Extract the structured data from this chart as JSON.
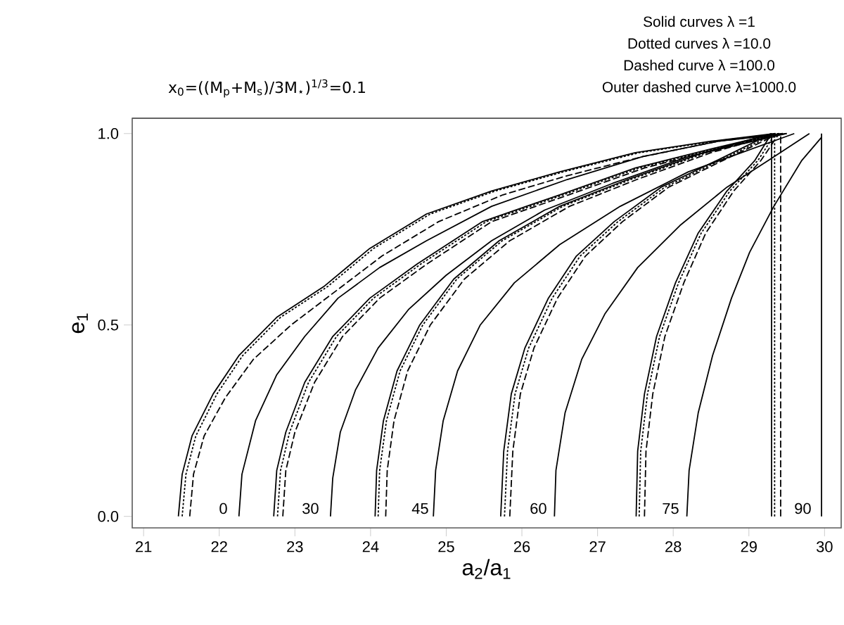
{
  "chart_data": {
    "type": "line",
    "xlabel": "a$_{2}$/a$_{1}$",
    "ylabel": "e$_{1}$",
    "xlim": [
      20.85,
      30.22
    ],
    "ylim": [
      -0.03,
      1.04
    ],
    "xticks": [
      21,
      22,
      23,
      24,
      25,
      26,
      27,
      28,
      29,
      30
    ],
    "yticks": [
      {
        "value": 0,
        "label": "0.0"
      },
      {
        "value": 0.5,
        "label": "0.5"
      },
      {
        "value": 1,
        "label": "1.0"
      }
    ],
    "annotations": [
      "x$_{0}$=((M$_{p}$+M$_{s}$)/3M$_{⋆}$)$^{1/3}$=0.1",
      "Solid curves λ =1",
      "Dotted curves λ =10.0",
      "Dashed curve λ =100.0",
      "Outer dashed curve λ=1000.0",
      "0",
      "30",
      "45",
      "60",
      "75",
      "90"
    ],
    "series": [
      {
        "color": "#000000",
        "line_style": "solid",
        "x": [
          21.46,
          21.51,
          21.64,
          21.92,
          22.26,
          22.76,
          23.38,
          23.99,
          24.74,
          25.6,
          26.5,
          27.5,
          28.5,
          29.35
        ],
        "values": [
          0,
          0.11,
          0.21,
          0.32,
          0.42,
          0.52,
          0.6,
          0.7,
          0.79,
          0.85,
          0.9,
          0.95,
          0.98,
          1.0
        ]
      },
      {
        "color": "#000000",
        "line_style": "dotted",
        "x": [
          21.51,
          21.56,
          21.69,
          21.97,
          22.31,
          22.81,
          23.43,
          24.04,
          24.79,
          25.65,
          26.55,
          27.55,
          28.55,
          29.4
        ],
        "values": [
          0,
          0.11,
          0.21,
          0.32,
          0.42,
          0.52,
          0.6,
          0.7,
          0.79,
          0.85,
          0.9,
          0.95,
          0.98,
          1.0
        ]
      },
      {
        "color": "#000000",
        "line_style": "dashed",
        "x": [
          21.61,
          21.66,
          21.8,
          22.08,
          22.45,
          22.95,
          23.55,
          24.15,
          24.9,
          25.75,
          26.6,
          27.6,
          28.6,
          29.45
        ],
        "values": [
          0,
          0.11,
          0.21,
          0.31,
          0.41,
          0.5,
          0.59,
          0.68,
          0.77,
          0.84,
          0.89,
          0.94,
          0.98,
          1.0
        ]
      },
      {
        "color": "#000000",
        "line_style": "solid",
        "x": [
          22.26,
          22.3,
          22.48,
          22.76,
          23.13,
          23.57,
          24.12,
          24.74,
          25.6,
          26.6,
          27.6,
          28.6,
          29.5
        ],
        "values": [
          0,
          0.11,
          0.25,
          0.37,
          0.47,
          0.57,
          0.65,
          0.72,
          0.81,
          0.88,
          0.94,
          0.98,
          1.0
        ]
      },
      {
        "color": "#000000",
        "line_style": "solid",
        "x": [
          22.72,
          22.76,
          22.88,
          23.13,
          23.5,
          23.99,
          24.62,
          25.48,
          26.5,
          27.5,
          28.5,
          29.35
        ],
        "values": [
          0,
          0.12,
          0.22,
          0.35,
          0.47,
          0.57,
          0.66,
          0.77,
          0.84,
          0.91,
          0.96,
          1.0
        ]
      },
      {
        "color": "#000000",
        "line_style": "dotted",
        "x": [
          22.77,
          22.81,
          22.93,
          23.18,
          23.55,
          24.04,
          24.67,
          25.53,
          26.55,
          27.55,
          28.55,
          29.4
        ],
        "values": [
          0,
          0.12,
          0.22,
          0.35,
          0.47,
          0.57,
          0.66,
          0.77,
          0.84,
          0.91,
          0.96,
          1.0
        ]
      },
      {
        "color": "#000000",
        "line_style": "dashed",
        "x": [
          22.84,
          22.88,
          23.0,
          23.26,
          23.63,
          24.12,
          24.75,
          25.6,
          26.62,
          27.62,
          28.6,
          29.45
        ],
        "values": [
          0,
          0.12,
          0.22,
          0.35,
          0.47,
          0.57,
          0.66,
          0.77,
          0.84,
          0.91,
          0.96,
          1.0
        ]
      },
      {
        "color": "#000000",
        "line_style": "solid",
        "x": [
          23.47,
          23.5,
          23.6,
          23.8,
          24.1,
          24.5,
          25.0,
          25.6,
          26.3,
          27.2,
          28.2,
          29.5
        ],
        "values": [
          0,
          0.1,
          0.22,
          0.33,
          0.44,
          0.54,
          0.63,
          0.72,
          0.8,
          0.87,
          0.94,
          1.0
        ]
      },
      {
        "color": "#000000",
        "line_style": "solid",
        "x": [
          24.06,
          24.08,
          24.17,
          24.35,
          24.65,
          25.1,
          25.7,
          26.5,
          27.4,
          28.4,
          29.3
        ],
        "values": [
          0,
          0.12,
          0.25,
          0.38,
          0.5,
          0.62,
          0.72,
          0.81,
          0.88,
          0.95,
          1.0
        ]
      },
      {
        "color": "#000000",
        "line_style": "dotted",
        "x": [
          24.1,
          24.12,
          24.21,
          24.39,
          24.69,
          25.14,
          25.74,
          26.54,
          27.44,
          28.44,
          29.35
        ],
        "values": [
          0,
          0.12,
          0.25,
          0.38,
          0.5,
          0.62,
          0.72,
          0.81,
          0.88,
          0.95,
          1.0
        ]
      },
      {
        "color": "#000000",
        "line_style": "dashed",
        "x": [
          24.2,
          24.22,
          24.31,
          24.49,
          24.79,
          25.24,
          25.84,
          26.63,
          27.52,
          28.5,
          29.4
        ],
        "values": [
          0,
          0.12,
          0.25,
          0.38,
          0.5,
          0.62,
          0.72,
          0.81,
          0.88,
          0.95,
          1.0
        ]
      },
      {
        "color": "#000000",
        "line_style": "solid",
        "x": [
          24.83,
          24.86,
          24.96,
          25.15,
          25.45,
          25.9,
          26.5,
          27.3,
          28.2,
          29.6
        ],
        "values": [
          0,
          0.12,
          0.25,
          0.38,
          0.5,
          0.61,
          0.71,
          0.81,
          0.9,
          1.0
        ]
      },
      {
        "color": "#000000",
        "line_style": "solid",
        "x": [
          25.72,
          25.76,
          25.86,
          26.04,
          26.35,
          26.72,
          27.22,
          27.84,
          28.58,
          29.3
        ],
        "values": [
          0,
          0.17,
          0.32,
          0.44,
          0.57,
          0.68,
          0.77,
          0.86,
          0.93,
          1.0
        ]
      },
      {
        "color": "#000000",
        "line_style": "dotted",
        "x": [
          25.77,
          25.81,
          25.91,
          26.09,
          26.4,
          26.77,
          27.27,
          27.89,
          28.62,
          29.35
        ],
        "values": [
          0,
          0.17,
          0.32,
          0.44,
          0.57,
          0.68,
          0.77,
          0.86,
          0.93,
          1.0
        ]
      },
      {
        "color": "#000000",
        "line_style": "dashed",
        "x": [
          25.84,
          25.88,
          25.98,
          26.16,
          26.47,
          26.84,
          27.33,
          27.94,
          28.66,
          29.4
        ],
        "values": [
          0,
          0.17,
          0.32,
          0.44,
          0.57,
          0.68,
          0.77,
          0.86,
          0.93,
          1.0
        ]
      },
      {
        "color": "#000000",
        "line_style": "solid",
        "x": [
          26.43,
          26.45,
          26.57,
          26.79,
          27.1,
          27.53,
          28.09,
          28.71,
          29.26,
          29.8
        ],
        "values": [
          0,
          0.12,
          0.27,
          0.41,
          0.53,
          0.65,
          0.76,
          0.86,
          0.93,
          1.0
        ]
      },
      {
        "color": "#000000",
        "line_style": "solid",
        "x": [
          27.51,
          27.53,
          27.62,
          27.78,
          28.03,
          28.33,
          28.71,
          29.08,
          29.3
        ],
        "values": [
          0,
          0.17,
          0.32,
          0.47,
          0.61,
          0.74,
          0.85,
          0.93,
          1.0
        ]
      },
      {
        "color": "#000000",
        "line_style": "dotted",
        "x": [
          27.55,
          27.57,
          27.66,
          27.82,
          28.07,
          28.37,
          28.75,
          29.12,
          29.35
        ],
        "values": [
          0,
          0.17,
          0.32,
          0.47,
          0.61,
          0.74,
          0.85,
          0.93,
          1.0
        ]
      },
      {
        "color": "#000000",
        "line_style": "dashed",
        "x": [
          27.62,
          27.64,
          27.73,
          27.89,
          28.14,
          28.43,
          28.8,
          29.16,
          29.4
        ],
        "values": [
          0,
          0.17,
          0.32,
          0.47,
          0.61,
          0.74,
          0.85,
          0.93,
          1.0
        ]
      },
      {
        "color": "#000000",
        "line_style": "solid",
        "x": [
          28.18,
          28.21,
          28.33,
          28.52,
          28.77,
          29.01,
          29.33,
          29.7,
          29.96
        ],
        "values": [
          0,
          0.12,
          0.27,
          0.42,
          0.57,
          0.69,
          0.81,
          0.93,
          0.99
        ]
      },
      {
        "color": "#000000",
        "line_style": "solid",
        "x": [
          29.3,
          29.3
        ],
        "values": [
          0,
          1.0
        ]
      },
      {
        "color": "#000000",
        "line_style": "dotted",
        "x": [
          29.34,
          29.34
        ],
        "values": [
          0,
          1.0
        ]
      },
      {
        "color": "#000000",
        "line_style": "dashed",
        "x": [
          29.42,
          29.42
        ],
        "values": [
          0,
          1.0
        ]
      },
      {
        "color": "#000000",
        "line_style": "solid",
        "x": [
          29.96,
          29.96,
          29.96
        ],
        "values": [
          0,
          0.5,
          1.0
        ]
      }
    ]
  }
}
